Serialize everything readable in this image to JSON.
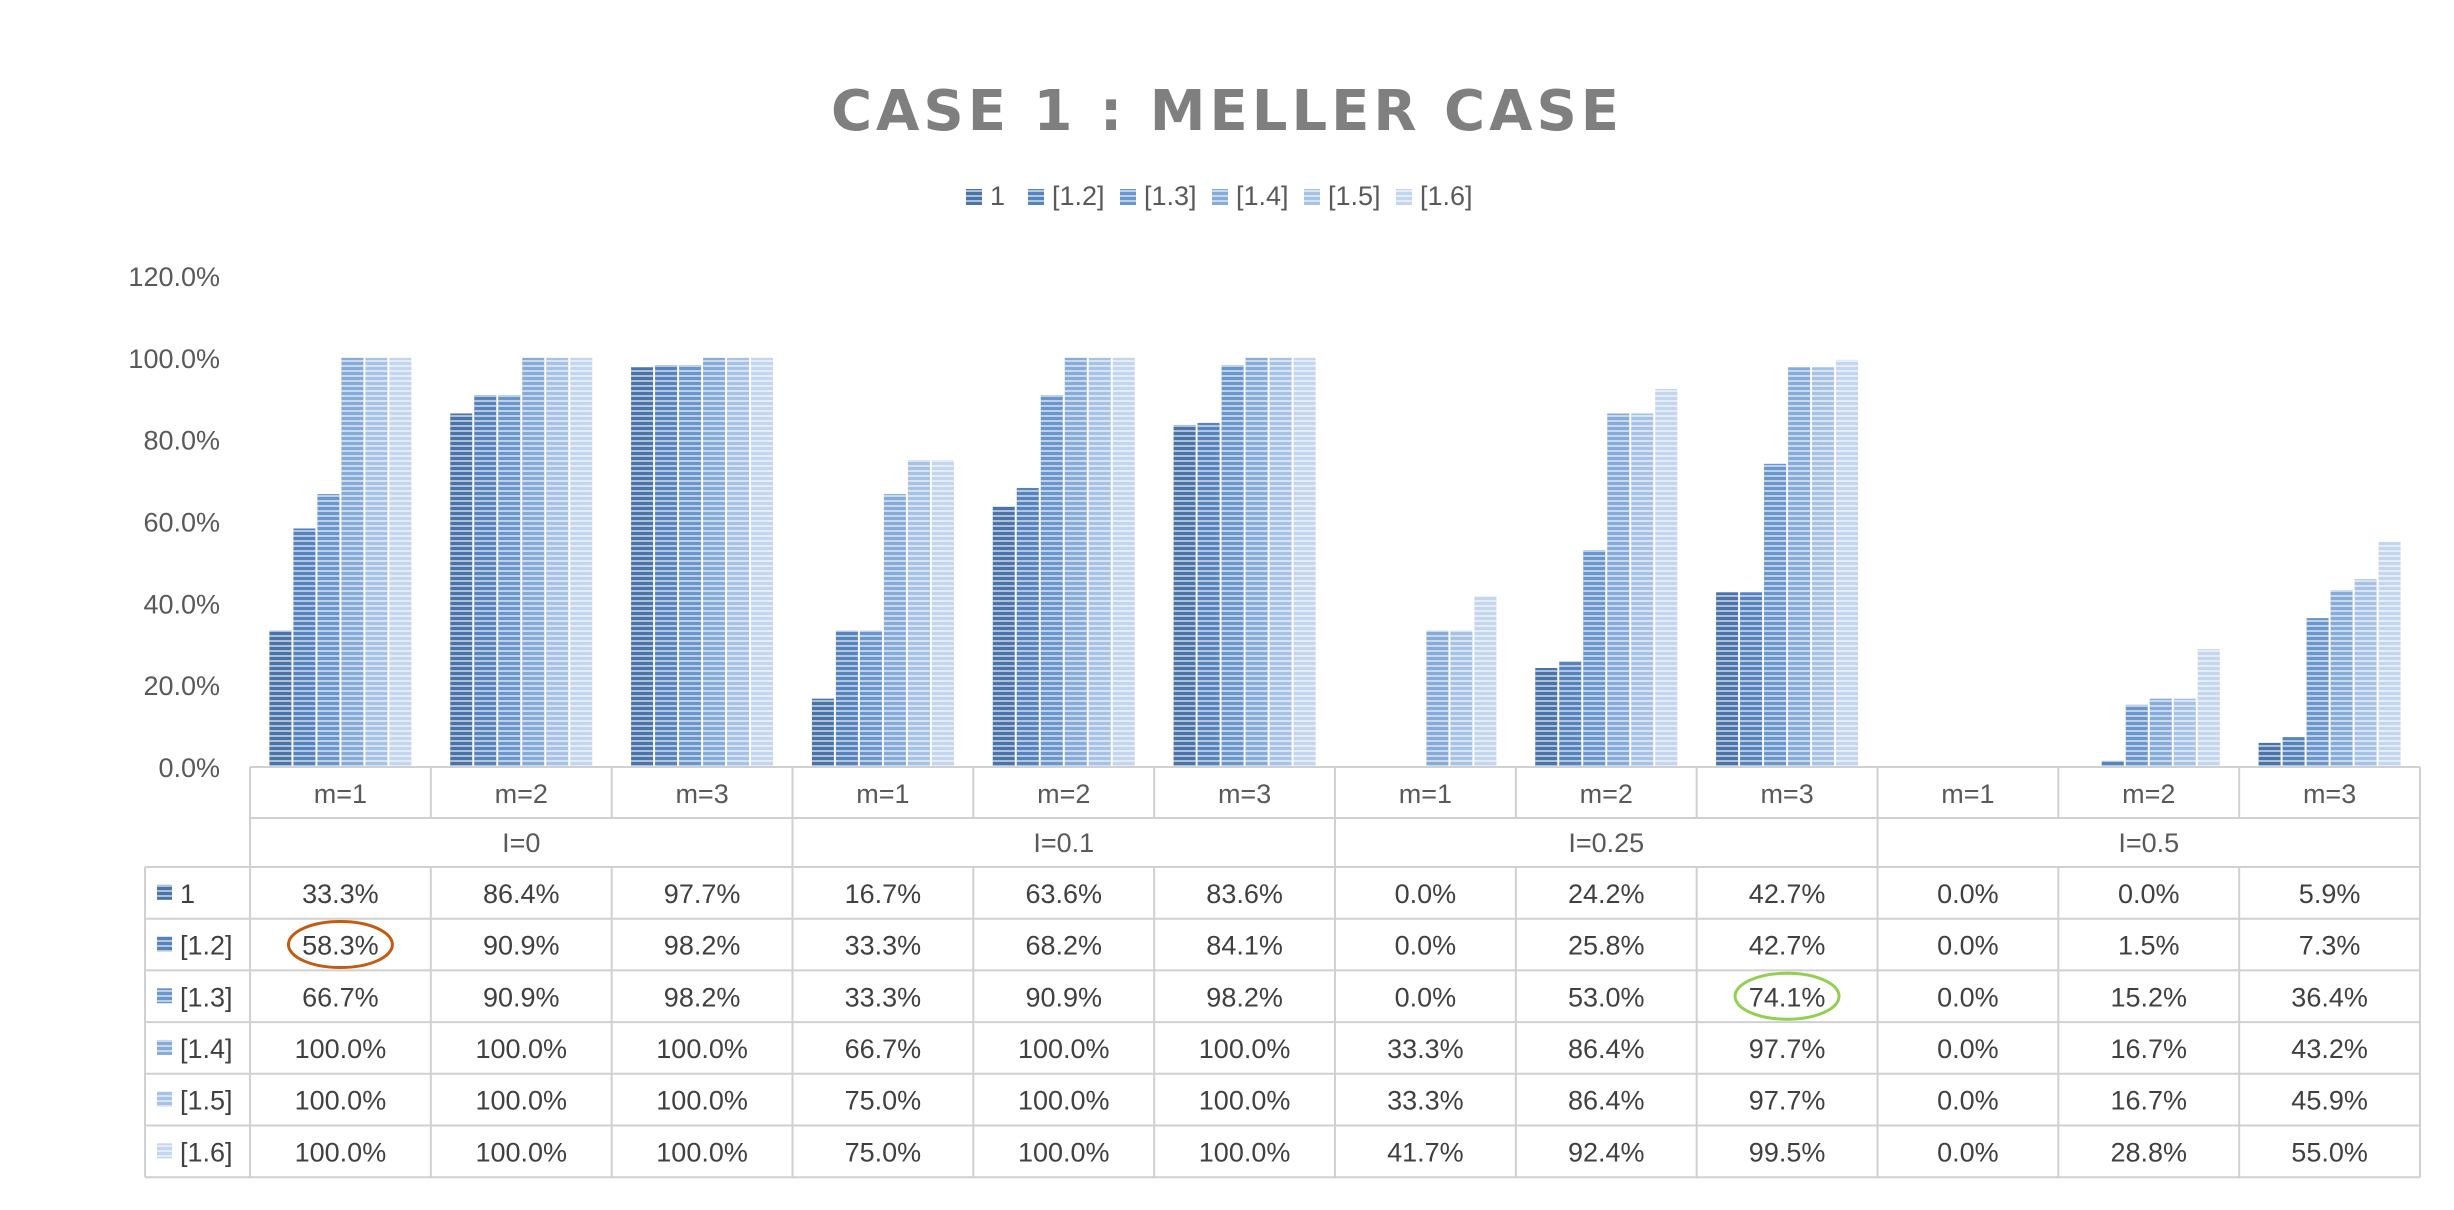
{
  "chart_data": {
    "type": "bar",
    "title": "CASE 1 : MELLER CASE",
    "ylim": [
      0,
      120
    ],
    "yticks": [
      "0.0%",
      "20.0%",
      "40.0%",
      "60.0%",
      "80.0%",
      "100.0%",
      "120.0%"
    ],
    "groups": [
      "I=0",
      "I=0.1",
      "I=0.25",
      "I=0.5"
    ],
    "subcategories": [
      "m=1",
      "m=2",
      "m=3"
    ],
    "categories": [
      "m=1",
      "m=2",
      "m=3",
      "m=1",
      "m=2",
      "m=3",
      "m=1",
      "m=2",
      "m=3",
      "m=1",
      "m=2",
      "m=3"
    ],
    "legend_position": "top",
    "series": [
      {
        "name": "1",
        "color": "#4a74a8",
        "values": [
          33.3,
          86.4,
          97.7,
          16.7,
          63.6,
          83.6,
          0.0,
          24.2,
          42.7,
          0.0,
          0.0,
          5.9
        ],
        "labels": [
          "33.3%",
          "86.4%",
          "97.7%",
          "16.7%",
          "63.6%",
          "83.6%",
          "0.0%",
          "24.2%",
          "42.7%",
          "0.0%",
          "0.0%",
          "5.9%"
        ]
      },
      {
        "name": "[1.2]",
        "color": "#5783bd",
        "values": [
          58.3,
          90.9,
          98.2,
          33.3,
          68.2,
          84.1,
          0.0,
          25.8,
          42.7,
          0.0,
          1.5,
          7.3
        ],
        "labels": [
          "58.3%",
          "90.9%",
          "98.2%",
          "33.3%",
          "68.2%",
          "84.1%",
          "0.0%",
          "25.8%",
          "42.7%",
          "0.0%",
          "1.5%",
          "7.3%"
        ]
      },
      {
        "name": "[1.3]",
        "color": "#6a96cc",
        "values": [
          66.7,
          90.9,
          98.2,
          33.3,
          90.9,
          98.2,
          0.0,
          53.0,
          74.1,
          0.0,
          15.2,
          36.4
        ],
        "labels": [
          "66.7%",
          "90.9%",
          "98.2%",
          "33.3%",
          "90.9%",
          "98.2%",
          "0.0%",
          "53.0%",
          "74.1%",
          "0.0%",
          "15.2%",
          "36.4%"
        ]
      },
      {
        "name": "[1.4]",
        "color": "#86abd8",
        "values": [
          100.0,
          100.0,
          100.0,
          66.7,
          100.0,
          100.0,
          33.3,
          86.4,
          97.7,
          0.0,
          16.7,
          43.2
        ],
        "labels": [
          "100.0%",
          "100.0%",
          "100.0%",
          "66.7%",
          "100.0%",
          "100.0%",
          "33.3%",
          "86.4%",
          "97.7%",
          "0.0%",
          "16.7%",
          "43.2%"
        ]
      },
      {
        "name": "[1.5]",
        "color": "#a6c2e4",
        "values": [
          100.0,
          100.0,
          100.0,
          75.0,
          100.0,
          100.0,
          33.3,
          86.4,
          97.7,
          0.0,
          16.7,
          45.9
        ],
        "labels": [
          "100.0%",
          "100.0%",
          "100.0%",
          "75.0%",
          "100.0%",
          "100.0%",
          "33.3%",
          "86.4%",
          "97.7%",
          "0.0%",
          "16.7%",
          "45.9%"
        ]
      },
      {
        "name": "[1.6]",
        "color": "#c4d6ee",
        "values": [
          100.0,
          100.0,
          100.0,
          75.0,
          100.0,
          100.0,
          41.7,
          92.4,
          99.5,
          0.0,
          28.8,
          55.0
        ],
        "labels": [
          "100.0%",
          "100.0%",
          "100.0%",
          "75.0%",
          "100.0%",
          "100.0%",
          "41.7%",
          "92.4%",
          "99.5%",
          "0.0%",
          "28.8%",
          "55.0%"
        ]
      }
    ],
    "highlights": [
      {
        "series": 1,
        "category": 0,
        "color": "#c55a11"
      },
      {
        "series": 2,
        "category": 8,
        "color": "#92d050"
      }
    ]
  }
}
